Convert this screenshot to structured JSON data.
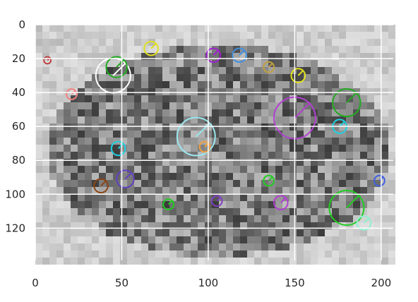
{
  "chart_data": {
    "type": "scatter",
    "description_of_content": "",
    "xlim": [
      0,
      207
    ],
    "ylim": [
      139,
      0
    ],
    "x_ticks": [
      0,
      50,
      100,
      150,
      200
    ],
    "y_ticks": [
      0,
      20,
      40,
      60,
      80,
      100,
      120
    ],
    "x_tick_labels": [
      "0",
      "50",
      "100",
      "150",
      "200"
    ],
    "y_tick_labels": [
      "0",
      "20",
      "40",
      "60",
      "80",
      "100",
      "120"
    ],
    "grid": true,
    "grid_color": "#ffffff",
    "image_background": "#c8c8c8",
    "keypoints": [
      {
        "x": 45,
        "y": 30,
        "r": 10,
        "color": "#ffffff"
      },
      {
        "x": 93,
        "y": 66,
        "r": 11,
        "color": "#9be7f0"
      },
      {
        "x": 150,
        "y": 55,
        "r": 12,
        "color": "#b040d0"
      },
      {
        "x": 180,
        "y": 108,
        "r": 10,
        "color": "#22cc22"
      },
      {
        "x": 180,
        "y": 46,
        "r": 8,
        "color": "#22aa22"
      },
      {
        "x": 47,
        "y": 25,
        "r": 6,
        "color": "#22aa22"
      },
      {
        "x": 67,
        "y": 14,
        "r": 4,
        "color": "#e0e020"
      },
      {
        "x": 103,
        "y": 18,
        "r": 4,
        "color": "#a020d0"
      },
      {
        "x": 118,
        "y": 18,
        "r": 4,
        "color": "#4090e0"
      },
      {
        "x": 152,
        "y": 30,
        "r": 4,
        "color": "#e0e020"
      },
      {
        "x": 176,
        "y": 60,
        "r": 4,
        "color": "#20d0e0"
      },
      {
        "x": 48,
        "y": 73,
        "r": 4,
        "color": "#20d0e0"
      },
      {
        "x": 38,
        "y": 95,
        "r": 4,
        "color": "#8b4513"
      },
      {
        "x": 52,
        "y": 91,
        "r": 5,
        "color": "#6040c0"
      },
      {
        "x": 77,
        "y": 106,
        "r": 3,
        "color": "#22cc22"
      },
      {
        "x": 190,
        "y": 117,
        "r": 4,
        "color": "#90f0d0"
      },
      {
        "x": 135,
        "y": 25,
        "r": 3,
        "color": "#c0a040"
      },
      {
        "x": 142,
        "y": 105,
        "r": 4,
        "color": "#b040d0"
      },
      {
        "x": 135,
        "y": 92,
        "r": 3,
        "color": "#22cc22"
      },
      {
        "x": 105,
        "y": 104,
        "r": 3,
        "color": "#8040c0"
      },
      {
        "x": 98,
        "y": 72,
        "r": 3,
        "color": "#f0a040"
      },
      {
        "x": 199,
        "y": 92,
        "r": 3,
        "color": "#4060e0"
      },
      {
        "x": 21,
        "y": 41,
        "r": 3,
        "color": "#f08080"
      },
      {
        "x": 7,
        "y": 21,
        "r": 2,
        "color": "#c04040"
      }
    ]
  }
}
